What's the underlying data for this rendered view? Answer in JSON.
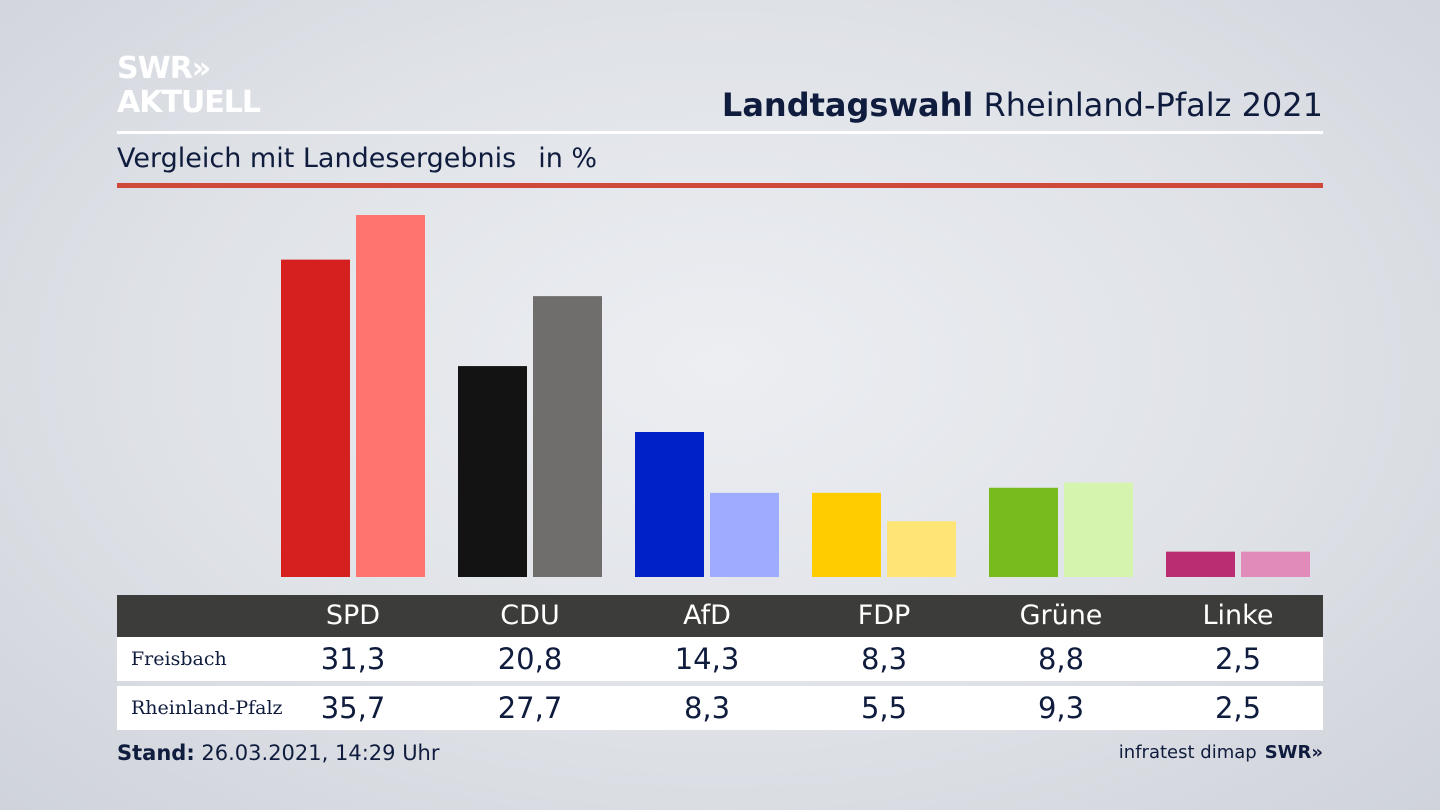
{
  "logo": {
    "line1": "SWR»",
    "line2": "AKTUELL"
  },
  "header": {
    "title_bold": "Landtagswahl",
    "title_rest": "Rheinland-Pfalz 2021"
  },
  "subtitle": {
    "text": "Vergleich mit Landesergebnis",
    "unit": "in %"
  },
  "footer": {
    "stand_label": "Stand:",
    "stand_value": "26.03.2021, 14:29 Uhr",
    "source": "infratest dimap",
    "brand": "SWR»"
  },
  "chart_data": {
    "type": "bar",
    "categories": [
      "SPD",
      "CDU",
      "AfD",
      "FDP",
      "Grüne",
      "Linke"
    ],
    "series": [
      {
        "name": "Freisbach",
        "values": [
          31.3,
          20.8,
          14.3,
          8.3,
          8.8,
          2.5
        ],
        "labels": [
          "31,3",
          "20,8",
          "14,3",
          "8,3",
          "8,8",
          "2,5"
        ]
      },
      {
        "name": "Rheinland-Pfalz",
        "values": [
          35.7,
          27.7,
          8.3,
          5.5,
          9.3,
          2.5
        ],
        "labels": [
          "35,7",
          "27,7",
          "8,3",
          "5,5",
          "9,3",
          "2,5"
        ]
      }
    ],
    "colors": {
      "series1": [
        "#d62020",
        "#131313",
        "#0020c8",
        "#ffcc00",
        "#78bb1e",
        "#bb2d73"
      ],
      "series2": [
        "#ff746e",
        "#706e6c",
        "#9dacff",
        "#ffe476",
        "#d5f4ad",
        "#e08bba"
      ]
    },
    "ylim": [
      0,
      36
    ],
    "grid": false,
    "legend": "table-below"
  }
}
